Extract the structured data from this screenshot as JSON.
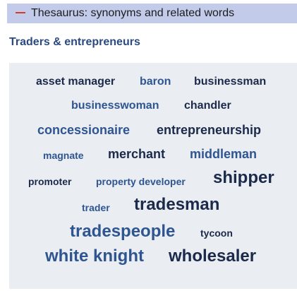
{
  "header": {
    "title": "Thesaurus: synonyms and related words"
  },
  "section": {
    "heading": "Traders & entrepreneurs"
  },
  "words": [
    "asset manager",
    "baron",
    "businessman",
    "businesswoman",
    "chandler",
    "concessionaire",
    "entrepreneurship",
    "magnate",
    "merchant",
    "middleman",
    "promoter",
    "property developer",
    "shipper",
    "trader",
    "tradesman",
    "tradespeople",
    "tycoon",
    "white knight",
    "wholesaler"
  ],
  "colors": {
    "header_bg": "#c2cbe9",
    "dash": "#d53b2a",
    "heading": "#2b4a80",
    "cloud_bg": "#eaedf1",
    "word_dark": "#1b2a4a",
    "word_blue": "#2e5590"
  }
}
